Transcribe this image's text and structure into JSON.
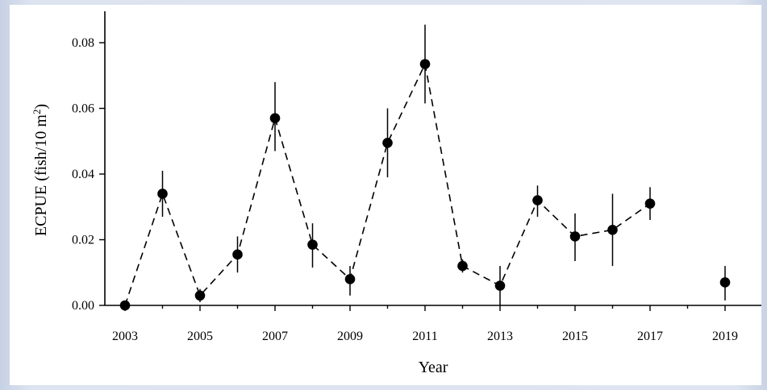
{
  "chart_data": {
    "type": "scatter",
    "xlabel": "Year",
    "ylabel": {
      "text": "ECPUE (fish/10 m",
      "superscript": "2",
      "closing": ")"
    },
    "xlim": [
      2002.6,
      2019.6
    ],
    "ylim": [
      0,
      0.09
    ],
    "x_ticks": [
      2003,
      2005,
      2007,
      2009,
      2011,
      2013,
      2015,
      2017,
      2019
    ],
    "x_tick_labels": [
      "2003",
      "2005",
      "2007",
      "2009",
      "2011",
      "2013",
      "2015",
      "2017",
      "2019"
    ],
    "y_ticks": [
      0,
      0.02,
      0.04,
      0.06,
      0.08
    ],
    "y_tick_labels": [
      "0.00",
      "0.02",
      "0.04",
      "0.06",
      "0.08"
    ],
    "line_style": "dashed",
    "marker_color": "#000000",
    "grid": false,
    "legend": "none",
    "series": [
      {
        "points": [
          {
            "x": 2003,
            "y": 0.0,
            "err_low": 0.0,
            "err_high": 0.0
          },
          {
            "x": 2004,
            "y": 0.034,
            "err_low": 0.027,
            "err_high": 0.041
          },
          {
            "x": 2005,
            "y": 0.003,
            "err_low": 0.001,
            "err_high": 0.005
          },
          {
            "x": 2006,
            "y": 0.0155,
            "err_low": 0.01,
            "err_high": 0.021
          },
          {
            "x": 2007,
            "y": 0.057,
            "err_low": 0.047,
            "err_high": 0.068
          },
          {
            "x": 2008,
            "y": 0.0185,
            "err_low": 0.0115,
            "err_high": 0.025
          },
          {
            "x": 2009,
            "y": 0.008,
            "err_low": 0.003,
            "err_high": 0.012
          },
          {
            "x": 2010,
            "y": 0.0495,
            "err_low": 0.039,
            "err_high": 0.06
          },
          {
            "x": 2011,
            "y": 0.0735,
            "err_low": 0.0615,
            "err_high": 0.0855
          },
          {
            "x": 2012,
            "y": 0.012,
            "err_low": 0.01,
            "err_high": 0.014
          },
          {
            "x": 2013,
            "y": 0.006,
            "err_low": 0.0,
            "err_high": 0.012
          },
          {
            "x": 2014,
            "y": 0.032,
            "err_low": 0.027,
            "err_high": 0.0365
          },
          {
            "x": 2015,
            "y": 0.021,
            "err_low": 0.0135,
            "err_high": 0.028
          },
          {
            "x": 2016,
            "y": 0.023,
            "err_low": 0.012,
            "err_high": 0.034
          },
          {
            "x": 2017,
            "y": 0.031,
            "err_low": 0.026,
            "err_high": 0.036
          },
          {
            "x": 2019,
            "y": 0.007,
            "err_low": 0.0015,
            "err_high": 0.012
          }
        ],
        "connected_segment_end_x": 2017
      }
    ]
  }
}
